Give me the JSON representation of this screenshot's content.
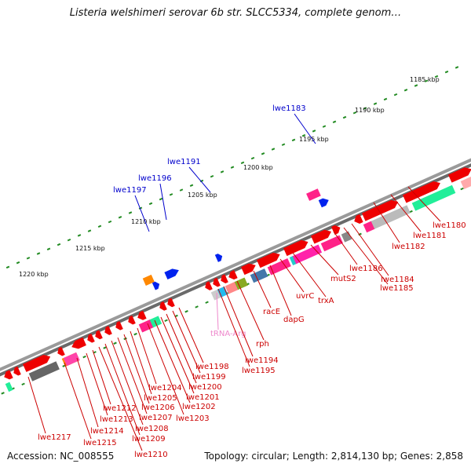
{
  "title": "Listeria welshimeri serovar 6b str. SLCC5334, complete genom…",
  "footer": {
    "accession": "Accession: NC_008555",
    "summary": "Topology: circular; Length: 2,814,130 bp; Genes: 2,858"
  },
  "colors": {
    "backbone": "#8a8a8a",
    "tick": "#228b22",
    "label_red": "#cc0000",
    "label_blue": "#0000cc",
    "label_pink": "#ee88cc",
    "gene_red": "#ee0000",
    "gene_blue": "#0022ee"
  },
  "scale_labels": [
    "1185 kbp",
    "1190 kbp",
    "1195 kbp",
    "1200 kbp",
    "1205 kbp",
    "1210 kbp",
    "1215 kbp",
    "1220 kbp"
  ],
  "outer_labels": [
    "lwe1183",
    "lwe1191",
    "lwe1196",
    "lwe1197"
  ],
  "inner_labels": [
    "lwe1180",
    "lwe1181",
    "lwe1182",
    "lwe1184",
    "lwe1185",
    "lwe1186",
    "mutS2",
    "trxA",
    "uvrC",
    "dapG",
    "racE",
    "rph",
    "tRNA-Arg",
    "lwe1194",
    "lwe1195",
    "lwe1198",
    "lwe1199",
    "lwe1200",
    "lwe1201",
    "lwe1202",
    "lwe1203",
    "lwe1204",
    "lwe1205",
    "lwe1206",
    "lwe1207",
    "lwe1208",
    "lwe1209",
    "lwe1210",
    "lwe1212",
    "lwe1213",
    "lwe1214",
    "lwe1215",
    "lwe1217"
  ]
}
